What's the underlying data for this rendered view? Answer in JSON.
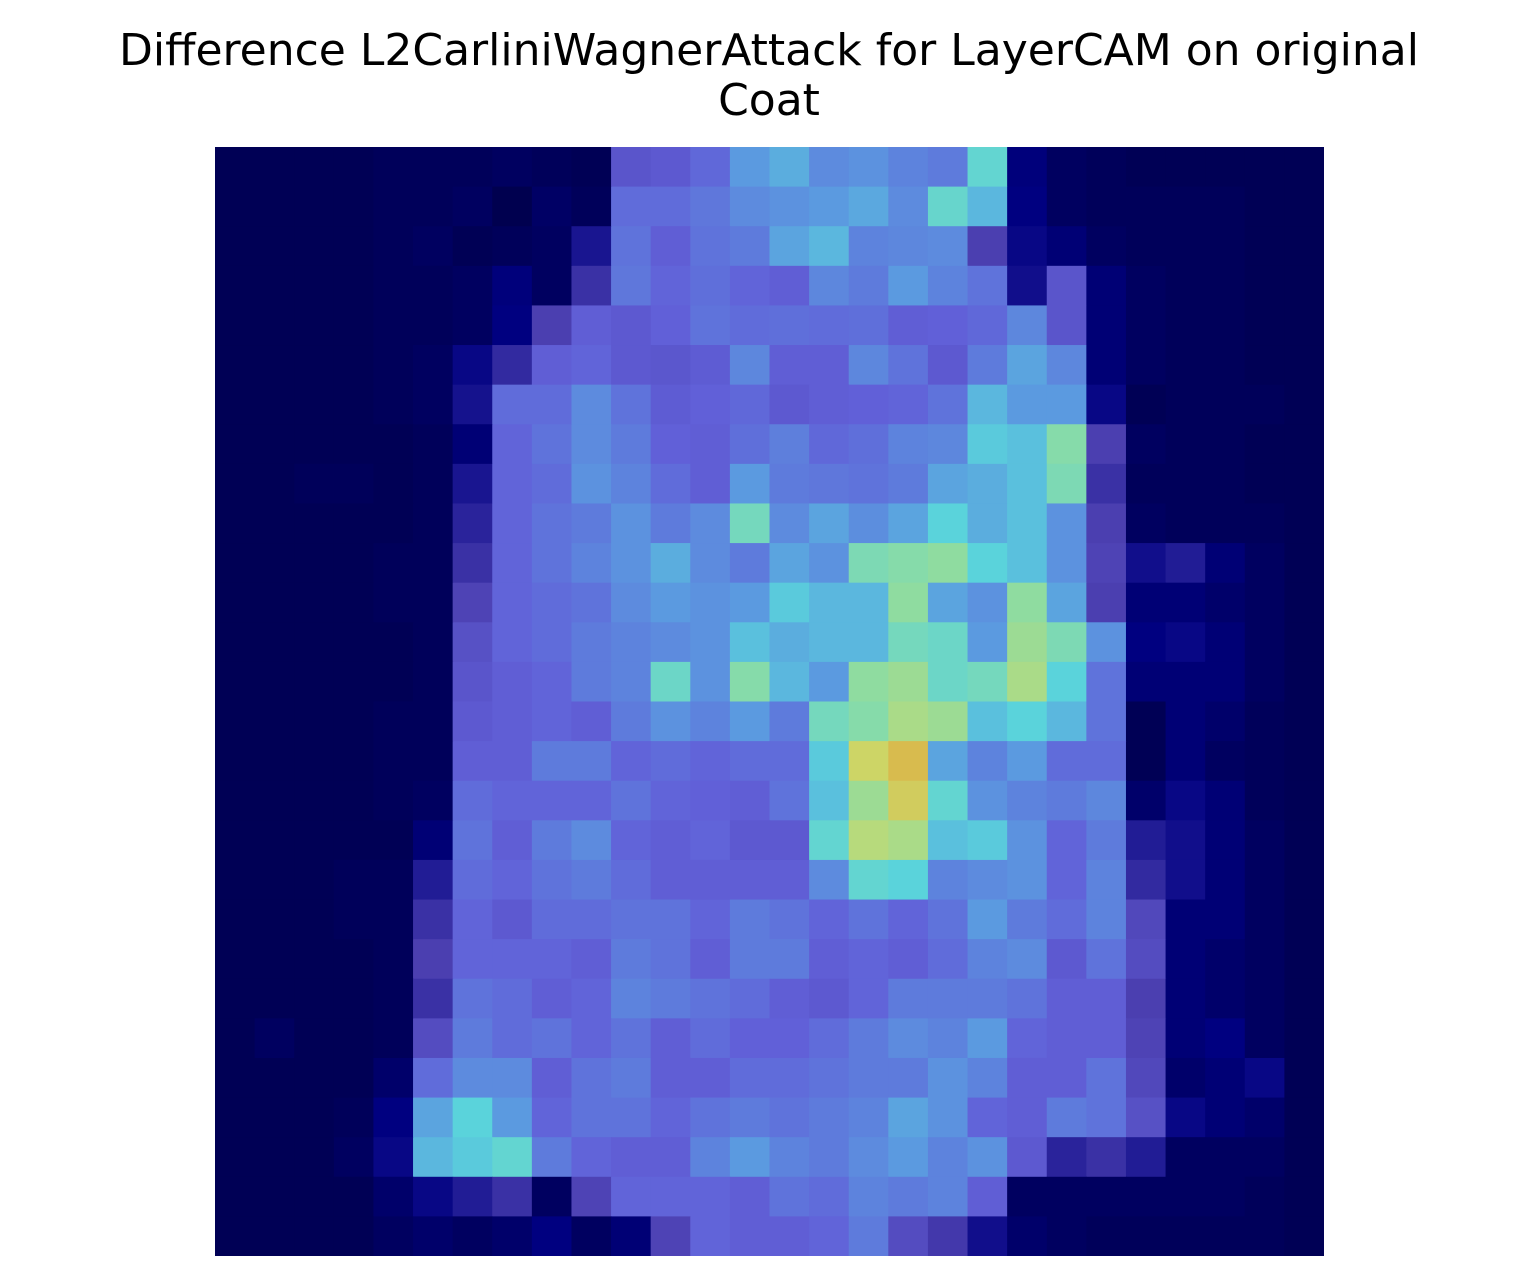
{
  "chart_data": {
    "type": "heatmap",
    "title_lines": [
      "Difference L2CarliniWagnerAttack for LayerCAM on original",
      "Coat"
    ],
    "xlabel": "",
    "ylabel": "",
    "axes_visible": false,
    "grid": false,
    "legend": "none",
    "rows": 28,
    "cols": 28,
    "colors": {
      "background": "#ffffff",
      "title_text": "#000000"
    },
    "color_scale": [
      [
        0.0,
        "#00003f"
      ],
      [
        0.12,
        "#000080"
      ],
      [
        0.3,
        "#4b3fb0"
      ],
      [
        0.45,
        "#6160d8"
      ],
      [
        0.6,
        "#5b9ae0"
      ],
      [
        0.72,
        "#5ad3db"
      ],
      [
        0.84,
        "#8fdca0"
      ],
      [
        0.93,
        "#cbd96a"
      ],
      [
        1.0,
        "#d8bb4e"
      ]
    ],
    "values": [
      [
        0.04,
        0.04,
        0.04,
        0.04,
        0.05,
        0.05,
        0.05,
        0.06,
        0.05,
        0.04,
        0.4,
        0.42,
        0.47,
        0.6,
        0.64,
        0.56,
        0.58,
        0.54,
        0.52,
        0.74,
        0.11,
        0.06,
        0.05,
        0.04,
        0.04,
        0.04,
        0.04,
        0.04
      ],
      [
        0.04,
        0.04,
        0.04,
        0.04,
        0.05,
        0.05,
        0.06,
        0.03,
        0.07,
        0.05,
        0.48,
        0.48,
        0.51,
        0.56,
        0.58,
        0.6,
        0.63,
        0.56,
        0.75,
        0.66,
        0.12,
        0.06,
        0.05,
        0.05,
        0.05,
        0.05,
        0.04,
        0.04
      ],
      [
        0.04,
        0.04,
        0.04,
        0.04,
        0.05,
        0.06,
        0.04,
        0.05,
        0.06,
        0.18,
        0.5,
        0.44,
        0.5,
        0.52,
        0.62,
        0.66,
        0.54,
        0.55,
        0.56,
        0.3,
        0.14,
        0.1,
        0.06,
        0.05,
        0.05,
        0.05,
        0.04,
        0.04
      ],
      [
        0.04,
        0.04,
        0.04,
        0.04,
        0.05,
        0.05,
        0.06,
        0.11,
        0.06,
        0.26,
        0.51,
        0.46,
        0.49,
        0.46,
        0.44,
        0.55,
        0.52,
        0.6,
        0.54,
        0.5,
        0.16,
        0.4,
        0.1,
        0.06,
        0.05,
        0.05,
        0.04,
        0.04
      ],
      [
        0.04,
        0.04,
        0.04,
        0.04,
        0.05,
        0.05,
        0.06,
        0.12,
        0.3,
        0.44,
        0.42,
        0.45,
        0.5,
        0.48,
        0.49,
        0.48,
        0.49,
        0.44,
        0.45,
        0.47,
        0.55,
        0.4,
        0.1,
        0.06,
        0.05,
        0.05,
        0.04,
        0.04
      ],
      [
        0.04,
        0.04,
        0.04,
        0.04,
        0.05,
        0.06,
        0.14,
        0.24,
        0.44,
        0.46,
        0.42,
        0.41,
        0.43,
        0.55,
        0.44,
        0.44,
        0.55,
        0.5,
        0.42,
        0.52,
        0.62,
        0.55,
        0.1,
        0.06,
        0.05,
        0.05,
        0.04,
        0.04
      ],
      [
        0.04,
        0.04,
        0.04,
        0.04,
        0.05,
        0.06,
        0.17,
        0.48,
        0.48,
        0.56,
        0.5,
        0.43,
        0.45,
        0.47,
        0.42,
        0.44,
        0.45,
        0.46,
        0.5,
        0.66,
        0.6,
        0.6,
        0.14,
        0.04,
        0.05,
        0.05,
        0.05,
        0.04
      ],
      [
        0.04,
        0.04,
        0.04,
        0.04,
        0.04,
        0.05,
        0.1,
        0.46,
        0.5,
        0.56,
        0.52,
        0.45,
        0.44,
        0.49,
        0.53,
        0.47,
        0.49,
        0.54,
        0.55,
        0.7,
        0.68,
        0.82,
        0.3,
        0.06,
        0.05,
        0.05,
        0.04,
        0.04
      ],
      [
        0.04,
        0.04,
        0.05,
        0.05,
        0.04,
        0.05,
        0.18,
        0.46,
        0.48,
        0.58,
        0.54,
        0.48,
        0.44,
        0.6,
        0.52,
        0.51,
        0.5,
        0.52,
        0.62,
        0.64,
        0.68,
        0.8,
        0.26,
        0.05,
        0.05,
        0.05,
        0.04,
        0.04
      ],
      [
        0.04,
        0.04,
        0.04,
        0.04,
        0.04,
        0.05,
        0.22,
        0.46,
        0.5,
        0.52,
        0.58,
        0.52,
        0.56,
        0.78,
        0.56,
        0.62,
        0.57,
        0.62,
        0.72,
        0.64,
        0.68,
        0.58,
        0.3,
        0.06,
        0.05,
        0.05,
        0.05,
        0.04
      ],
      [
        0.04,
        0.04,
        0.04,
        0.04,
        0.05,
        0.05,
        0.26,
        0.46,
        0.5,
        0.54,
        0.58,
        0.64,
        0.56,
        0.52,
        0.62,
        0.58,
        0.8,
        0.82,
        0.84,
        0.72,
        0.68,
        0.58,
        0.32,
        0.16,
        0.2,
        0.1,
        0.06,
        0.04
      ],
      [
        0.04,
        0.04,
        0.04,
        0.04,
        0.05,
        0.05,
        0.32,
        0.46,
        0.48,
        0.5,
        0.56,
        0.6,
        0.58,
        0.6,
        0.7,
        0.66,
        0.66,
        0.84,
        0.62,
        0.58,
        0.84,
        0.62,
        0.3,
        0.1,
        0.1,
        0.08,
        0.06,
        0.04
      ],
      [
        0.04,
        0.04,
        0.04,
        0.04,
        0.04,
        0.05,
        0.38,
        0.46,
        0.48,
        0.52,
        0.54,
        0.56,
        0.58,
        0.68,
        0.64,
        0.66,
        0.66,
        0.78,
        0.76,
        0.6,
        0.86,
        0.8,
        0.58,
        0.12,
        0.14,
        0.1,
        0.06,
        0.04
      ],
      [
        0.04,
        0.04,
        0.04,
        0.04,
        0.04,
        0.05,
        0.4,
        0.44,
        0.46,
        0.52,
        0.54,
        0.76,
        0.58,
        0.82,
        0.66,
        0.6,
        0.84,
        0.86,
        0.76,
        0.78,
        0.88,
        0.72,
        0.5,
        0.1,
        0.1,
        0.1,
        0.06,
        0.04
      ],
      [
        0.04,
        0.04,
        0.04,
        0.04,
        0.05,
        0.05,
        0.42,
        0.44,
        0.46,
        0.44,
        0.52,
        0.58,
        0.54,
        0.6,
        0.52,
        0.78,
        0.82,
        0.88,
        0.86,
        0.68,
        0.72,
        0.66,
        0.5,
        0.04,
        0.1,
        0.08,
        0.05,
        0.04
      ],
      [
        0.04,
        0.04,
        0.04,
        0.04,
        0.05,
        0.05,
        0.44,
        0.44,
        0.52,
        0.52,
        0.46,
        0.48,
        0.46,
        0.48,
        0.48,
        0.7,
        0.94,
        1.0,
        0.62,
        0.54,
        0.6,
        0.48,
        0.48,
        0.04,
        0.1,
        0.06,
        0.05,
        0.04
      ],
      [
        0.04,
        0.04,
        0.04,
        0.04,
        0.05,
        0.06,
        0.48,
        0.46,
        0.46,
        0.46,
        0.5,
        0.46,
        0.45,
        0.44,
        0.5,
        0.68,
        0.86,
        0.96,
        0.74,
        0.58,
        0.54,
        0.52,
        0.55,
        0.08,
        0.14,
        0.1,
        0.05,
        0.04
      ],
      [
        0.04,
        0.04,
        0.04,
        0.04,
        0.04,
        0.1,
        0.5,
        0.44,
        0.52,
        0.56,
        0.46,
        0.44,
        0.46,
        0.42,
        0.42,
        0.74,
        0.9,
        0.88,
        0.68,
        0.7,
        0.58,
        0.46,
        0.52,
        0.2,
        0.16,
        0.1,
        0.06,
        0.04
      ],
      [
        0.04,
        0.04,
        0.04,
        0.05,
        0.05,
        0.2,
        0.48,
        0.46,
        0.5,
        0.52,
        0.48,
        0.44,
        0.44,
        0.44,
        0.44,
        0.56,
        0.74,
        0.72,
        0.54,
        0.56,
        0.58,
        0.46,
        0.54,
        0.24,
        0.16,
        0.1,
        0.06,
        0.04
      ],
      [
        0.04,
        0.04,
        0.04,
        0.05,
        0.05,
        0.26,
        0.46,
        0.42,
        0.48,
        0.48,
        0.5,
        0.5,
        0.46,
        0.52,
        0.5,
        0.46,
        0.5,
        0.46,
        0.5,
        0.6,
        0.52,
        0.48,
        0.54,
        0.34,
        0.1,
        0.1,
        0.06,
        0.04
      ],
      [
        0.04,
        0.04,
        0.04,
        0.04,
        0.05,
        0.3,
        0.46,
        0.46,
        0.46,
        0.44,
        0.52,
        0.5,
        0.44,
        0.52,
        0.52,
        0.44,
        0.46,
        0.44,
        0.48,
        0.54,
        0.56,
        0.42,
        0.5,
        0.36,
        0.1,
        0.08,
        0.06,
        0.04
      ],
      [
        0.04,
        0.04,
        0.04,
        0.04,
        0.05,
        0.26,
        0.5,
        0.48,
        0.44,
        0.46,
        0.54,
        0.52,
        0.5,
        0.48,
        0.44,
        0.42,
        0.46,
        0.52,
        0.52,
        0.52,
        0.5,
        0.44,
        0.44,
        0.3,
        0.1,
        0.08,
        0.06,
        0.04
      ],
      [
        0.04,
        0.06,
        0.04,
        0.04,
        0.05,
        0.36,
        0.52,
        0.48,
        0.5,
        0.46,
        0.5,
        0.44,
        0.48,
        0.45,
        0.45,
        0.48,
        0.52,
        0.56,
        0.54,
        0.6,
        0.46,
        0.44,
        0.44,
        0.32,
        0.1,
        0.12,
        0.06,
        0.04
      ],
      [
        0.04,
        0.04,
        0.04,
        0.04,
        0.08,
        0.48,
        0.56,
        0.56,
        0.44,
        0.5,
        0.52,
        0.44,
        0.44,
        0.48,
        0.48,
        0.5,
        0.52,
        0.52,
        0.58,
        0.54,
        0.44,
        0.44,
        0.5,
        0.34,
        0.08,
        0.1,
        0.14,
        0.04
      ],
      [
        0.04,
        0.04,
        0.04,
        0.05,
        0.12,
        0.62,
        0.72,
        0.6,
        0.46,
        0.5,
        0.5,
        0.46,
        0.5,
        0.52,
        0.5,
        0.52,
        0.54,
        0.62,
        0.58,
        0.46,
        0.44,
        0.52,
        0.5,
        0.38,
        0.14,
        0.1,
        0.08,
        0.04
      ],
      [
        0.04,
        0.04,
        0.04,
        0.06,
        0.14,
        0.66,
        0.7,
        0.74,
        0.52,
        0.46,
        0.44,
        0.44,
        0.54,
        0.6,
        0.54,
        0.52,
        0.56,
        0.6,
        0.54,
        0.58,
        0.42,
        0.22,
        0.26,
        0.2,
        0.06,
        0.06,
        0.06,
        0.04
      ],
      [
        0.04,
        0.04,
        0.04,
        0.04,
        0.08,
        0.14,
        0.2,
        0.26,
        0.06,
        0.32,
        0.46,
        0.46,
        0.46,
        0.44,
        0.5,
        0.48,
        0.54,
        0.52,
        0.54,
        0.44,
        0.06,
        0.06,
        0.06,
        0.06,
        0.06,
        0.06,
        0.05,
        0.04
      ],
      [
        0.04,
        0.04,
        0.04,
        0.04,
        0.06,
        0.08,
        0.06,
        0.08,
        0.12,
        0.06,
        0.1,
        0.32,
        0.46,
        0.44,
        0.44,
        0.46,
        0.52,
        0.36,
        0.28,
        0.16,
        0.08,
        0.06,
        0.05,
        0.05,
        0.05,
        0.05,
        0.05,
        0.04
      ]
    ]
  }
}
